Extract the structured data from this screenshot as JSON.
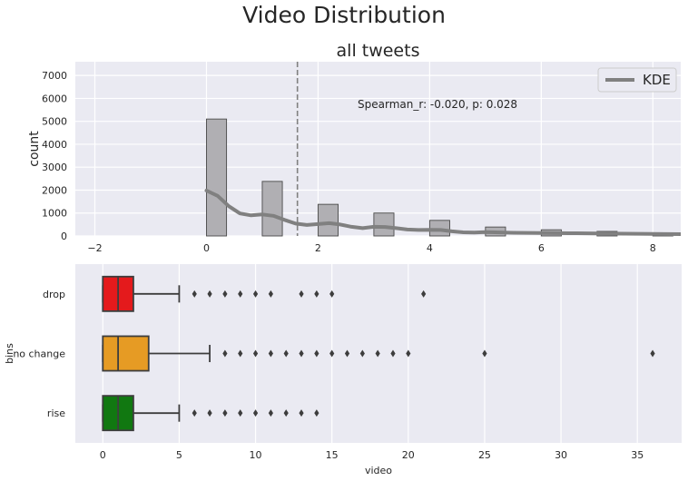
{
  "figure": {
    "title": "Video Distribution"
  },
  "chart_data": [
    {
      "type": "bar",
      "title": "all tweets",
      "xlabel": "",
      "ylabel": "count",
      "xlim": [
        -2.35,
        8.5
      ],
      "ylim": [
        0,
        7600
      ],
      "xticks": [
        -2,
        0,
        2,
        4,
        6,
        8
      ],
      "yticks": [
        0,
        1000,
        2000,
        3000,
        4000,
        5000,
        6000,
        7000
      ],
      "grid": true,
      "bars": [
        {
          "x0": 0.0,
          "x1": 0.36,
          "value": 5100
        },
        {
          "x0": 1.0,
          "x1": 1.36,
          "value": 2380
        },
        {
          "x0": 2.0,
          "x1": 2.36,
          "value": 1380
        },
        {
          "x0": 3.0,
          "x1": 3.36,
          "value": 1000
        },
        {
          "x0": 4.0,
          "x1": 4.36,
          "value": 680
        },
        {
          "x0": 5.0,
          "x1": 5.36,
          "value": 390
        },
        {
          "x0": 6.0,
          "x1": 6.36,
          "value": 270
        },
        {
          "x0": 7.0,
          "x1": 7.36,
          "value": 200
        },
        {
          "x0": 8.0,
          "x1": 8.36,
          "value": 110
        }
      ],
      "kde": {
        "name": "KDE",
        "x": [
          0.0,
          0.2,
          0.4,
          0.6,
          0.8,
          1.0,
          1.2,
          1.4,
          1.6,
          1.8,
          2.0,
          2.2,
          2.4,
          2.6,
          2.8,
          3.0,
          3.2,
          3.4,
          3.6,
          3.8,
          4.0,
          4.2,
          4.4,
          4.6,
          4.8,
          5.0,
          5.5,
          6.0,
          6.5,
          7.0,
          7.5,
          8.0,
          8.5
        ],
        "y": [
          1980,
          1750,
          1300,
          980,
          900,
          940,
          880,
          700,
          540,
          480,
          520,
          560,
          500,
          400,
          340,
          400,
          390,
          340,
          280,
          260,
          270,
          260,
          200,
          160,
          150,
          170,
          140,
          130,
          120,
          110,
          100,
          90,
          80
        ]
      },
      "vline": {
        "x": 1.63,
        "color": "#808080"
      },
      "annotation": "Spearman_r: -0.020, p: 0.028",
      "legend": {
        "entries": [
          "KDE"
        ],
        "placement": "top-right"
      },
      "colors": {
        "bar_fill": "#b0afb3",
        "bar_edge": "#4a4a4a",
        "kde": "#808080",
        "bg": "#eaeaf2"
      }
    },
    {
      "type": "box",
      "title": "",
      "xlabel": "video",
      "ylabel": "bins",
      "xlim": [
        -1.8,
        37.9
      ],
      "xticks": [
        0,
        5,
        10,
        15,
        20,
        25,
        30,
        35
      ],
      "grid": true,
      "categories": [
        "drop",
        "no change",
        "rise"
      ],
      "boxes": [
        {
          "name": "drop",
          "color": "#e41a1c",
          "q1": 0,
          "median": 1,
          "q3": 2,
          "whisker_low": 0,
          "whisker_high": 5,
          "outliers": [
            6,
            7,
            8,
            9,
            10,
            11,
            13,
            14,
            15,
            21
          ]
        },
        {
          "name": "no change",
          "color": "#e69b24",
          "q1": 0,
          "median": 1,
          "q3": 3,
          "whisker_low": 0,
          "whisker_high": 7,
          "outliers": [
            8,
            9,
            10,
            11,
            12,
            13,
            14,
            15,
            16,
            17,
            18,
            19,
            20,
            25,
            36
          ]
        },
        {
          "name": "rise",
          "color": "#117811",
          "q1": 0,
          "median": 1,
          "q3": 2,
          "whisker_low": 0,
          "whisker_high": 5,
          "outliers": [
            6,
            7,
            8,
            9,
            10,
            11,
            12,
            13,
            14
          ]
        }
      ]
    }
  ]
}
